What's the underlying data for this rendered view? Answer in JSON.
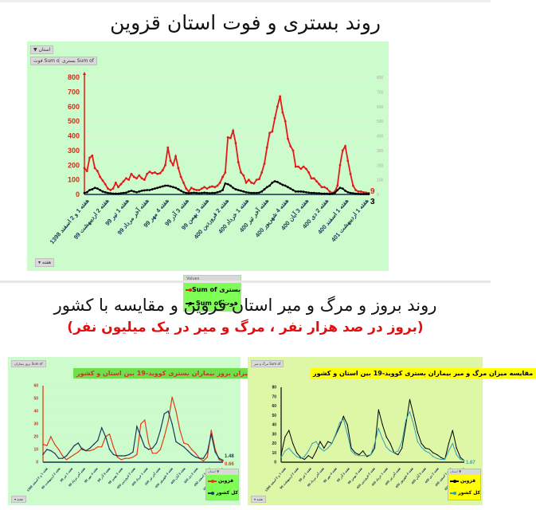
{
  "page": {
    "title1": "روند بستری و فوت استان قزوین",
    "title2": "روند بروز و مرگ و میر استان قزوین و مقایسه با کشور",
    "subtitle2": "(بروز در صد هزار نفر ، مرگ و میر در یک میلیون نفر)"
  },
  "panel1": {
    "filter_button": "استان ▼",
    "field_button_1": "Sum of فوت",
    "field_button_2": "Sum of بستری",
    "week_filter_button": "هفته ▾",
    "legend_header": "Values",
    "legend_items": [
      {
        "label": "Sum of بستری",
        "color": "#e31a1a"
      },
      {
        "label": "Sum of فوت",
        "color": "#000000"
      }
    ],
    "last_value_red": "9",
    "last_value_black": "3"
  },
  "panel2": {
    "title": "مقایسه میزان بروز بیماران بستری کووید-19 بین استان و کشور",
    "field_button": "Sum of بروز بیماران",
    "week_filter_button": "هفته ▾",
    "legend_header": "استان ▼",
    "legend_items": [
      {
        "label": "قزوین",
        "color": "#e03a1a"
      },
      {
        "label": "کل کشور",
        "color": "#17375e"
      }
    ],
    "last_value_country": "1.48",
    "last_value_province": "0.66"
  },
  "panel3": {
    "title": "مقایسه میزان مرگ و میر بیماران بستری کووید-19 بین استان و کشور",
    "field_button": "Sum of مرگ و میر",
    "week_filter_button": "هفته ▾",
    "legend_header": "استان ▼",
    "legend_items": [
      {
        "label": "قزوین",
        "color": "#000000"
      },
      {
        "label": "کل کشور",
        "color": "#31a0b8"
      }
    ],
    "last_value": "1.67"
  },
  "chart_data": [
    {
      "type": "line",
      "title": "روند بستری و فوت استان قزوین",
      "xlabel": "",
      "ylabel": "",
      "ylim": [
        0,
        800
      ],
      "yticks": [
        0,
        100,
        200,
        300,
        400,
        500,
        600,
        700,
        800
      ],
      "grid": true,
      "legend_position": "bottom-right",
      "categories": [
        "هفته 1 و 2 اسفند 1398",
        "هفته 2 اردیبهشت 99",
        "هفته 1 تیر 99",
        "هفته آخر مرداد 99",
        "هفته 4 مهر 99",
        "هفته 3 آذر 99",
        "هفته 3 بهمن 99",
        "هفته 2 فروردین 400",
        "هفته 1 خرداد 400",
        "هفته آخر تیر 400",
        "هفته 4 شهریور 400",
        "هفته 3 آبان 400",
        "هفته 2 دی 400",
        "هفته 1 اسفند 400",
        "هفته 1 اردیبهشت 401"
      ],
      "series": [
        {
          "name": "Sum of بستری",
          "color": "#e31a1a",
          "values": [
            180,
            160,
            250,
            265,
            180,
            160,
            120,
            95,
            70,
            40,
            30,
            40,
            80,
            50,
            70,
            90,
            110,
            100,
            140,
            120,
            110,
            130,
            110,
            100,
            140,
            155,
            145,
            150,
            140,
            145,
            165,
            200,
            320,
            230,
            200,
            260,
            180,
            120,
            80,
            40,
            20,
            45,
            35,
            30,
            30,
            40,
            50,
            40,
            50,
            55,
            50,
            60,
            80,
            120,
            150,
            390,
            385,
            435,
            350,
            220,
            150,
            130,
            80,
            100,
            80,
            75,
            100,
            105,
            150,
            210,
            320,
            420,
            430,
            520,
            600,
            670,
            560,
            500,
            380,
            330,
            300,
            190,
            190,
            175,
            190,
            175,
            150,
            110,
            110,
            90,
            70,
            50,
            50,
            40,
            20,
            10,
            20,
            60,
            200,
            300,
            330,
            230,
            140,
            60,
            30,
            20,
            20,
            15,
            12,
            9
          ]
        },
        {
          "name": "Sum of فوت",
          "color": "#000000",
          "values": [
            10,
            15,
            30,
            35,
            45,
            40,
            30,
            20,
            15,
            10,
            8,
            5,
            5,
            5,
            8,
            10,
            12,
            20,
            25,
            20,
            15,
            20,
            25,
            28,
            30,
            30,
            35,
            40,
            45,
            50,
            55,
            60,
            60,
            55,
            50,
            45,
            35,
            25,
            15,
            10,
            8,
            10,
            12,
            10,
            8,
            10,
            12,
            10,
            8,
            10,
            10,
            15,
            20,
            30,
            75,
            70,
            60,
            45,
            35,
            30,
            25,
            20,
            15,
            12,
            10,
            10,
            10,
            12,
            20,
            35,
            50,
            60,
            80,
            90,
            85,
            75,
            65,
            60,
            50,
            40,
            30,
            20,
            20,
            20,
            18,
            15,
            12,
            10,
            10,
            8,
            8,
            5,
            5,
            5,
            3,
            5,
            10,
            30,
            45,
            40,
            25,
            15,
            10,
            8,
            5,
            4,
            3,
            3,
            3,
            3
          ]
        }
      ],
      "end_labels": {
        "red": 9,
        "black": 3
      }
    },
    {
      "type": "line",
      "title": "مقایسه میزان بروز بیماران بستری کووید-19 بین استان و کشور",
      "ylim": [
        0,
        60
      ],
      "yticks": [
        0,
        10,
        20,
        30,
        40,
        50,
        60
      ],
      "grid": true,
      "legend_position": "bottom-right",
      "categories": [
        "هفته 1 و 2 اسفند 1398",
        "هفته 2 اردیبهشت 99",
        "هفته 1 تیر 99",
        "هفته آخر مرداد 99",
        "هفته 4 مهر 99",
        "هفته 3 آذر 99",
        "هفته 3 بهمن 99",
        "هفته 2 فروردین 400",
        "هفته 1 خرداد 400",
        "هفته آخر تیر 400",
        "هفته 4 شهریور 400",
        "هفته 3 آبان 400",
        "هفته 2 دی 400",
        "هفته 1 اسفند 400",
        "هفته 1 اردیبهشت 401"
      ],
      "series": [
        {
          "name": "قزوین",
          "color": "#e03a1a",
          "values": [
            14,
            13,
            20,
            14,
            10,
            5,
            2,
            4,
            6,
            8,
            11,
            9,
            9,
            10,
            12,
            12,
            20,
            22,
            12,
            4,
            2,
            3,
            3,
            4,
            6,
            30,
            33,
            15,
            7,
            7,
            10,
            20,
            32,
            51,
            40,
            25,
            15,
            14,
            10,
            7,
            3,
            1,
            4,
            25,
            10,
            2,
            0.66
          ]
        },
        {
          "name": "کل کشور",
          "color": "#17375e",
          "values": [
            6,
            10,
            9,
            7,
            3,
            3,
            5,
            9,
            13,
            15,
            10,
            9,
            11,
            14,
            17,
            27,
            20,
            10,
            6,
            5,
            5,
            5,
            6,
            8,
            28,
            20,
            12,
            10,
            11,
            15,
            25,
            38,
            40,
            30,
            16,
            14,
            12,
            9,
            6,
            4,
            3,
            3,
            8,
            22,
            8,
            3,
            1.48
          ]
        }
      ],
      "end_labels": {
        "country": 1.48,
        "province": 0.66
      }
    },
    {
      "type": "line",
      "title": "مقایسه میزان مرگ و میر بیماران بستری کووید-19 بین استان و کشور",
      "ylim": [
        0,
        80
      ],
      "yticks": [
        0,
        10,
        20,
        30,
        40,
        50,
        60,
        70,
        80
      ],
      "grid": false,
      "legend_position": "bottom-right",
      "categories": [
        "هفته 1 و 2 اسفند 1398",
        "هفته 2 اردیبهشت 99",
        "هفته 1 تیر 99",
        "هفته آخر مرداد 99",
        "هفته 4 مهر 99",
        "هفته 3 آذر 99",
        "هفته 3 بهمن 99",
        "هفته 2 فروردین 400",
        "هفته 1 خرداد 400",
        "هفته آخر تیر 400",
        "هفته 4 شهریور 400",
        "هفته 3 آبان 400",
        "هفته 2 دی 400",
        "هفته 1 اسفند 400",
        "هفته 1 اردیبهشت 401"
      ],
      "series": [
        {
          "name": "قزوین",
          "color": "#000000",
          "values": [
            8,
            27,
            34,
            20,
            10,
            5,
            3,
            7,
            4,
            12,
            22,
            15,
            22,
            20,
            29,
            38,
            49,
            40,
            15,
            10,
            8,
            12,
            6,
            8,
            15,
            56,
            40,
            27,
            20,
            10,
            8,
            15,
            40,
            67,
            50,
            32,
            20,
            15,
            14,
            10,
            8,
            5,
            3,
            20,
            34,
            15,
            5,
            1.67
          ]
        },
        {
          "name": "کل کشور",
          "color": "#31a0b8",
          "values": [
            5,
            12,
            15,
            10,
            6,
            4,
            6,
            12,
            20,
            22,
            15,
            12,
            15,
            20,
            30,
            42,
            46,
            30,
            12,
            8,
            7,
            7,
            7,
            8,
            20,
            36,
            25,
            16,
            12,
            10,
            12,
            22,
            45,
            54,
            40,
            22,
            16,
            12,
            10,
            6,
            4,
            3,
            3,
            12,
            20,
            8,
            3,
            1.67
          ]
        }
      ],
      "end_labels": {
        "value": 1.67
      }
    }
  ]
}
